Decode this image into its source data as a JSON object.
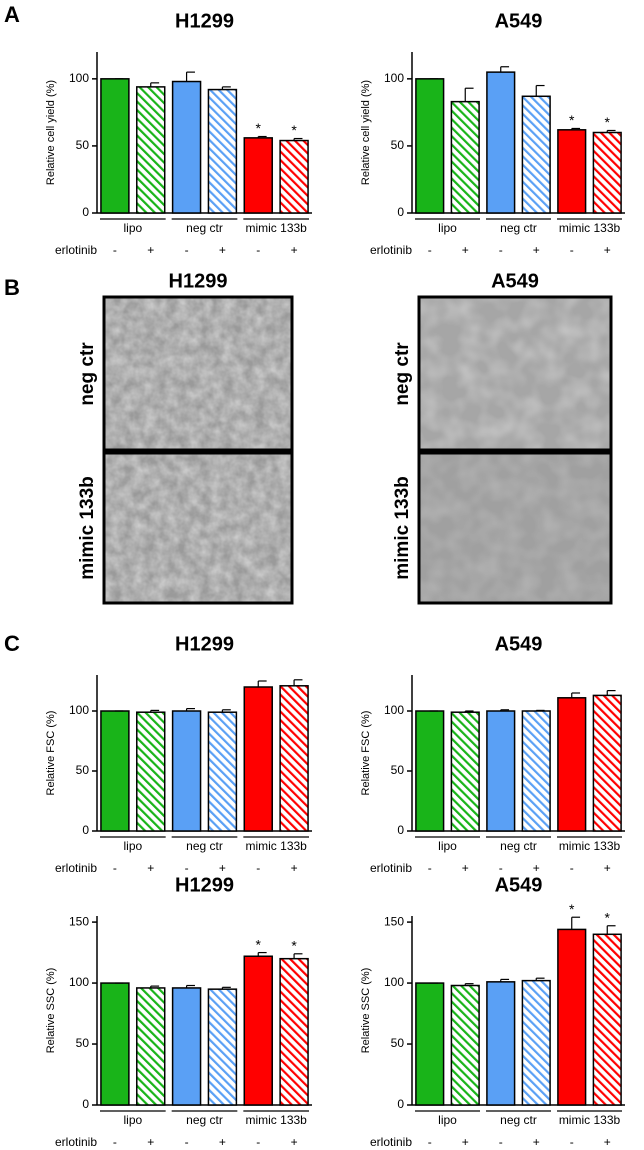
{
  "panel_labels": [
    "A",
    "B",
    "C"
  ],
  "micrographs": {
    "columns": [
      "H1299",
      "A549"
    ],
    "rows": [
      "neg ctr",
      "mimic 133b"
    ]
  },
  "chart_data": [
    {
      "type": "bar",
      "title": "H1299",
      "ylabel": "Relative cell yield (%)",
      "categories": [
        "-",
        "+",
        "-",
        "+",
        "-",
        "+"
      ],
      "groups": [
        "lipo",
        "neg ctr",
        "mimic 133b"
      ],
      "row_label": "erlotinib",
      "values": [
        100,
        94,
        98,
        92,
        56,
        54
      ],
      "errors": [
        0,
        3,
        7,
        2,
        1,
        1.5
      ],
      "colors": [
        "#19b419",
        "#19b419",
        "#5aa0f5",
        "#5aa0f5",
        "#ff0000",
        "#ff0000"
      ],
      "hatched": [
        false,
        true,
        false,
        true,
        false,
        true
      ],
      "star_labels": [
        null,
        null,
        null,
        null,
        "*",
        "*"
      ],
      "ylim": [
        0,
        120
      ],
      "yticks": [
        0,
        50,
        100
      ]
    },
    {
      "type": "bar",
      "title": "A549",
      "ylabel": "Relative cell yield (%)",
      "categories": [
        "-",
        "+",
        "-",
        "+",
        "-",
        "+"
      ],
      "groups": [
        "lipo",
        "neg ctr",
        "mimic 133b"
      ],
      "row_label": "erlotinib",
      "values": [
        100,
        83,
        105,
        87,
        62,
        60
      ],
      "errors": [
        0,
        10,
        4,
        8,
        1,
        1.5
      ],
      "colors": [
        "#19b419",
        "#19b419",
        "#5aa0f5",
        "#5aa0f5",
        "#ff0000",
        "#ff0000"
      ],
      "hatched": [
        false,
        true,
        false,
        true,
        false,
        true
      ],
      "star_labels": [
        null,
        null,
        null,
        null,
        "*",
        "*"
      ],
      "ylim": [
        0,
        120
      ],
      "yticks": [
        0,
        50,
        100
      ]
    },
    {
      "type": "bar",
      "title": "H1299",
      "ylabel": "Relative FSC (%)",
      "categories": [
        "-",
        "+",
        "-",
        "+",
        "-",
        "+"
      ],
      "groups": [
        "lipo",
        "neg ctr",
        "mimic 133b"
      ],
      "row_label": "erlotinib",
      "values": [
        100,
        99,
        100,
        99,
        120,
        121
      ],
      "errors": [
        0,
        1.5,
        2,
        2,
        5,
        5
      ],
      "colors": [
        "#19b419",
        "#19b419",
        "#5aa0f5",
        "#5aa0f5",
        "#ff0000",
        "#ff0000"
      ],
      "hatched": [
        false,
        true,
        false,
        true,
        false,
        true
      ],
      "star_labels": [
        null,
        null,
        null,
        null,
        null,
        null
      ],
      "ylim": [
        0,
        130
      ],
      "yticks": [
        0,
        50,
        100
      ]
    },
    {
      "type": "bar",
      "title": "A549",
      "ylabel": "Relative FSC (%)",
      "categories": [
        "-",
        "+",
        "-",
        "+",
        "-",
        "+"
      ],
      "groups": [
        "lipo",
        "neg ctr",
        "mimic 133b"
      ],
      "row_label": "erlotinib",
      "values": [
        100,
        99,
        100,
        100,
        111,
        113
      ],
      "errors": [
        0,
        1,
        1,
        0.5,
        4,
        4
      ],
      "colors": [
        "#19b419",
        "#19b419",
        "#5aa0f5",
        "#5aa0f5",
        "#ff0000",
        "#ff0000"
      ],
      "hatched": [
        false,
        true,
        false,
        true,
        false,
        true
      ],
      "star_labels": [
        null,
        null,
        null,
        null,
        null,
        null
      ],
      "ylim": [
        0,
        130
      ],
      "yticks": [
        0,
        50,
        100
      ]
    },
    {
      "type": "bar",
      "title": "H1299",
      "ylabel": "Relative SSC (%)",
      "categories": [
        "-",
        "+",
        "-",
        "+",
        "-",
        "+"
      ],
      "groups": [
        "lipo",
        "neg ctr",
        "mimic 133b"
      ],
      "row_label": "erlotinib",
      "values": [
        100,
        96,
        96,
        95,
        122,
        120
      ],
      "errors": [
        0,
        1.5,
        2,
        1.5,
        3,
        4
      ],
      "colors": [
        "#19b419",
        "#19b419",
        "#5aa0f5",
        "#5aa0f5",
        "#ff0000",
        "#ff0000"
      ],
      "hatched": [
        false,
        true,
        false,
        true,
        false,
        true
      ],
      "star_labels": [
        null,
        null,
        null,
        null,
        "*",
        "*"
      ],
      "ylim": [
        0,
        155
      ],
      "yticks": [
        0,
        50,
        100,
        150
      ]
    },
    {
      "type": "bar",
      "title": "A549",
      "ylabel": "Relative SSC (%)",
      "categories": [
        "-",
        "+",
        "-",
        "+",
        "-",
        "+"
      ],
      "groups": [
        "lipo",
        "neg ctr",
        "mimic 133b"
      ],
      "row_label": "erlotinib",
      "values": [
        100,
        98,
        101,
        102,
        144,
        140
      ],
      "errors": [
        0,
        1.5,
        2,
        2,
        10,
        7
      ],
      "colors": [
        "#19b419",
        "#19b419",
        "#5aa0f5",
        "#5aa0f5",
        "#ff0000",
        "#ff0000"
      ],
      "hatched": [
        false,
        true,
        false,
        true,
        false,
        true
      ],
      "star_labels": [
        null,
        null,
        null,
        null,
        "*",
        "*"
      ],
      "ylim": [
        0,
        155
      ],
      "yticks": [
        0,
        50,
        100,
        150
      ]
    }
  ]
}
